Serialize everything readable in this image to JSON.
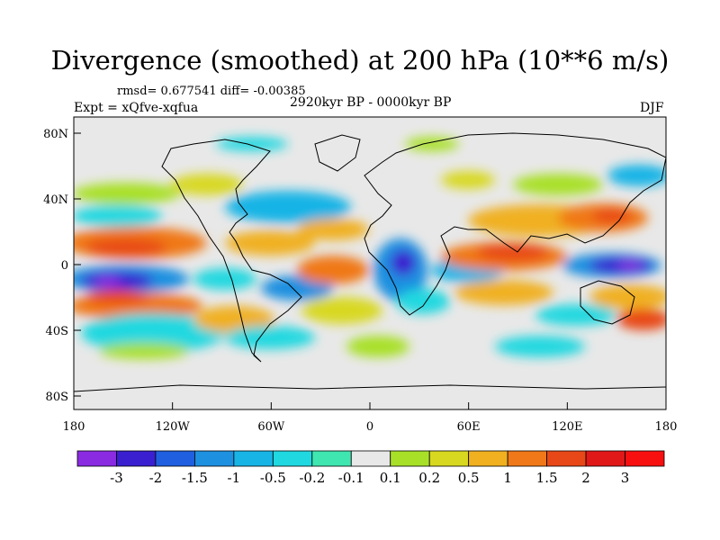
{
  "title": "Divergence (smoothed) at 200 hPa (10**6 m/s)",
  "stats": "rmsd= 0.677541 diff= -0.00385",
  "experiment": "Expt = xQfve-xqfua",
  "period": "2920kyr BP - 0000kyr BP",
  "season": "DJF",
  "lat_ticks": [
    "80N",
    "40N",
    "0",
    "40S",
    "80S"
  ],
  "lon_ticks": [
    "180",
    "120W",
    "60W",
    "0",
    "60E",
    "120E",
    "180"
  ],
  "colorbar": {
    "labels": [
      "-3",
      "-2",
      "-1.5",
      "-1",
      "-0.5",
      "-0.2",
      "-0.1",
      "0.1",
      "0.2",
      "0.5",
      "1",
      "1.5",
      "2",
      "3"
    ],
    "colors": [
      "#8a2be2",
      "#3a1fd0",
      "#1f5fe0",
      "#1e90e0",
      "#18b4e6",
      "#20d8e0",
      "#3fe6b0",
      "#e8e8e8",
      "#a8e028",
      "#d8d820",
      "#f0b020",
      "#f07818",
      "#e84818",
      "#e01818",
      "#f81010"
    ]
  }
}
